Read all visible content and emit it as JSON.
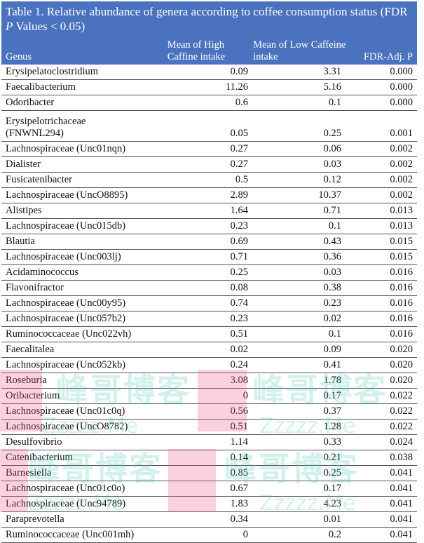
{
  "table": {
    "title_pre": "Table 1. Relative abundance of genera according to coffee consumption status (FDR ",
    "title_p": "P",
    "title_post": " Values < 0.05)",
    "columns": [
      "Genus",
      "Mean of High Caffine intake",
      "Mean of Low Caffeine intake",
      "FDR-Adj. P"
    ],
    "rows": [
      [
        "Erysipelatoclostridium",
        "0.09",
        "3.31",
        "0.000"
      ],
      [
        "Faecalibacterium",
        "11.26",
        "5.16",
        "0.000"
      ],
      [
        "Odoribacter",
        "0.6",
        "0.1",
        "0.000"
      ],
      [
        "Erysipelotrichaceae (FNWNL294)",
        "0.05",
        "0.25",
        "0.001"
      ],
      [
        "Lachnospiraceae (Unc01nqn)",
        "0.27",
        "0.06",
        "0.002"
      ],
      [
        "Dialister",
        "0.27",
        "0.03",
        "0.002"
      ],
      [
        "Fusicatenibacter",
        "0.5",
        "0.12",
        "0.002"
      ],
      [
        "Lachnospiraceae (UncO8895)",
        "2.89",
        "10.37",
        "0.002"
      ],
      [
        "Alistipes",
        "1.64",
        "0.71",
        "0.013"
      ],
      [
        "Lachnospiraceae (Unc015db)",
        "0.23",
        "0.1",
        "0.013"
      ],
      [
        "Blautia",
        "0.69",
        "0.43",
        "0.015"
      ],
      [
        "Lachnospiraceae (Unc003lj)",
        "0.71",
        "0.36",
        "0.015"
      ],
      [
        "Acidaminococcus",
        "0.25",
        "0.03",
        "0.016"
      ],
      [
        "Flavonifractor",
        "0.08",
        "0.38",
        "0.016"
      ],
      [
        "Lachnospiraceae (Unc00y95)",
        "0.74",
        "0.23",
        "0.016"
      ],
      [
        "Lachnospiraceae (Unc057b2)",
        "0.23",
        "0.02",
        "0.016"
      ],
      [
        "Ruminococcaceae (Unc022vh)",
        "0.51",
        "0.1",
        "0.016"
      ],
      [
        "Faecalitalea",
        "0.02",
        "0.09",
        "0.020"
      ],
      [
        "Lachnospiraceae (Unc052kb)",
        "0.24",
        "0.41",
        "0.020"
      ],
      [
        "Roseburia",
        "3.08",
        "1.78",
        "0.020"
      ],
      [
        "Oribacterium",
        "0",
        "0.17",
        "0.022"
      ],
      [
        "Lachnospiraceae (Unc01c0q)",
        "0.56",
        "0.37",
        "0.022"
      ],
      [
        "Lachnospiraceae (UncO8782)",
        "0.51",
        "1.28",
        "0.022"
      ],
      [
        "Desulfovibrio",
        "1.14",
        "0.33",
        "0.024"
      ],
      [
        "Catenibacterium",
        "0.14",
        "0.21",
        "0.038"
      ],
      [
        "Barnesiella",
        "0.85",
        "0.25",
        "0.041"
      ],
      [
        "Lachnospiraceae (Unc01c0o)",
        "0.67",
        "0.17",
        "0.041"
      ],
      [
        "Lachnospiraceae (Unc94789)",
        "1.83",
        "4.23",
        "0.041"
      ],
      [
        "Paraprevotella",
        "0.34",
        "0.01",
        "0.041"
      ],
      [
        "Ruminococcaceae (Unc001mh)",
        "0",
        "0.2",
        "0.041"
      ]
    ]
  },
  "watermark": {
    "cn": "峰哥博客",
    "en": "Zzzzz.Me"
  }
}
